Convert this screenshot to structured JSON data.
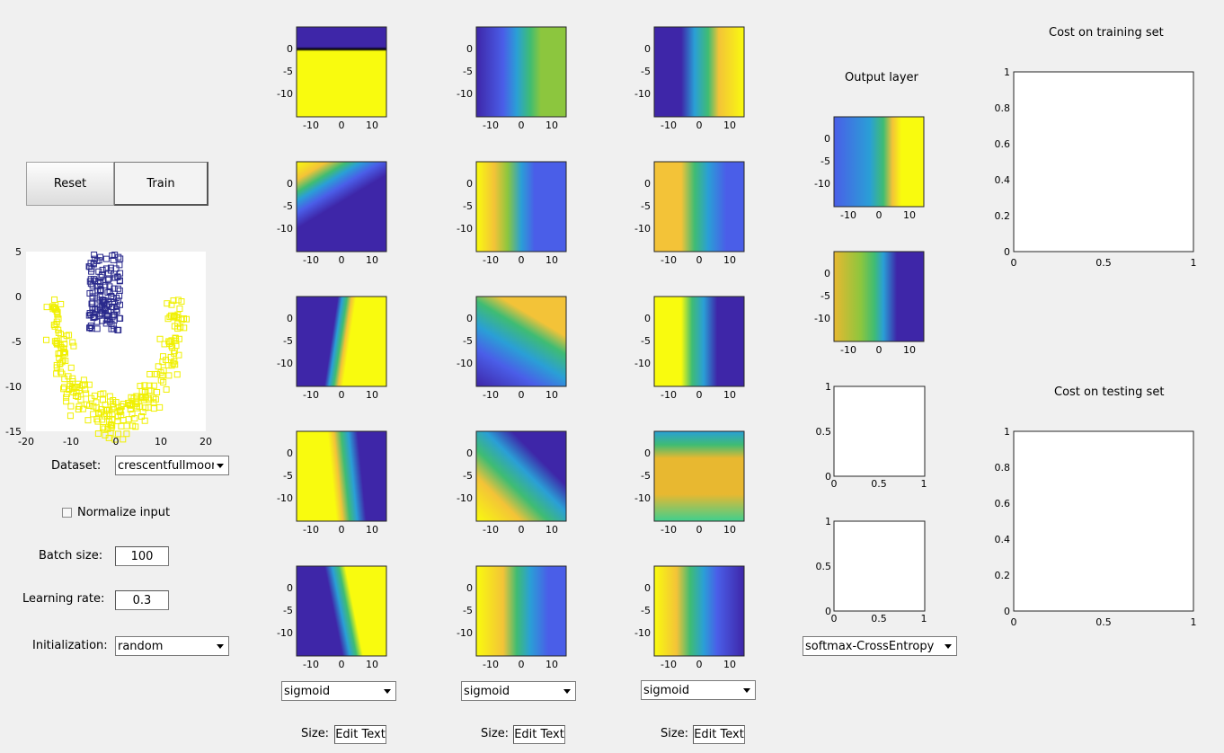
{
  "controls": {
    "reset_label": "Reset",
    "train_label": "Train",
    "dataset_label": "Dataset:",
    "dataset_value": "crescentfullmoon",
    "normalize_label": "Normalize input",
    "batch_label": "Batch size:",
    "batch_value": "100",
    "lr_label": "Learning rate:",
    "lr_value": "0.3",
    "init_label": "Initialization:",
    "init_value": "random"
  },
  "layers": [
    {
      "activation": "sigmoid",
      "size_label": "Size:",
      "size_value": "Edit Text"
    },
    {
      "activation": "sigmoid",
      "size_label": "Size:",
      "size_value": "Edit Text"
    },
    {
      "activation": "sigmoid",
      "size_label": "Size:",
      "size_value": "Edit Text"
    }
  ],
  "output": {
    "title": "Output layer",
    "loss_value": "softmax-CrossEntropy"
  },
  "costs": {
    "train_title": "Cost on training set",
    "test_title": "Cost on testing set"
  },
  "dataset_plot": {
    "x_ticks": [
      "-20",
      "-10",
      "0",
      "10",
      "20"
    ],
    "y_ticks": [
      "5",
      "0",
      "-5",
      "-10",
      "-15"
    ]
  },
  "neuron_plot": {
    "x_ticks": [
      "-10",
      "0",
      "10"
    ],
    "y_ticks": [
      "0",
      "-5",
      "-10"
    ]
  },
  "unit_plot": {
    "x_ticks": [
      "0",
      "0.5",
      "1"
    ],
    "y_ticks": [
      "1",
      "0.5",
      "0"
    ]
  },
  "cost_plot": {
    "x_ticks": [
      "0",
      "0.5",
      "1"
    ],
    "y_ticks": [
      "1",
      "0.8",
      "0.6",
      "0.4",
      "0.2",
      "0"
    ]
  },
  "colors": {
    "blue_dark": "#3e26a8",
    "yellow": "#f9fb0e",
    "class_a": "#2a2a8c",
    "class_b": "#f0f000"
  }
}
